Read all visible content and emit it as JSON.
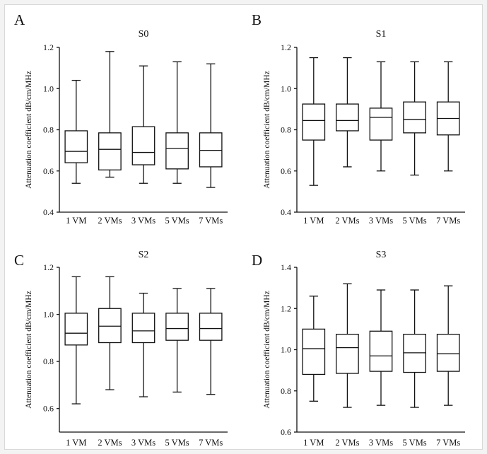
{
  "chart_data": [
    {
      "panel": "A",
      "title": "S0",
      "type": "boxplot",
      "ylabel": "Attenuation coefficient dB/cm/MHz",
      "ylim": [
        0.4,
        1.2
      ],
      "yticks": [
        "0.4",
        "0.6",
        "0.8",
        "1.0",
        "1.2"
      ],
      "categories": [
        "1 VM",
        "2 VMs",
        "3 VMs",
        "5 VMs",
        "7 VMs"
      ],
      "boxes": [
        {
          "min": 0.54,
          "q1": 0.64,
          "median": 0.695,
          "q3": 0.795,
          "max": 1.04
        },
        {
          "min": 0.57,
          "q1": 0.605,
          "median": 0.705,
          "q3": 0.785,
          "max": 1.18
        },
        {
          "min": 0.54,
          "q1": 0.63,
          "median": 0.69,
          "q3": 0.815,
          "max": 1.11
        },
        {
          "min": 0.54,
          "q1": 0.61,
          "median": 0.71,
          "q3": 0.785,
          "max": 1.13
        },
        {
          "min": 0.52,
          "q1": 0.62,
          "median": 0.7,
          "q3": 0.785,
          "max": 1.12
        }
      ]
    },
    {
      "panel": "B",
      "title": "S1",
      "type": "boxplot",
      "ylabel": "Attenuation coefficient dB/cm/MHz",
      "ylim": [
        0.4,
        1.2
      ],
      "yticks": [
        "0.4",
        "0.6",
        "0.8",
        "1.0",
        "1.2"
      ],
      "categories": [
        "1 VM",
        "2 VMs",
        "3 VMs",
        "5 VMs",
        "7 VMs"
      ],
      "boxes": [
        {
          "min": 0.53,
          "q1": 0.75,
          "median": 0.845,
          "q3": 0.925,
          "max": 1.15
        },
        {
          "min": 0.62,
          "q1": 0.795,
          "median": 0.845,
          "q3": 0.925,
          "max": 1.15
        },
        {
          "min": 0.6,
          "q1": 0.75,
          "median": 0.86,
          "q3": 0.905,
          "max": 1.13
        },
        {
          "min": 0.58,
          "q1": 0.785,
          "median": 0.85,
          "q3": 0.935,
          "max": 1.13
        },
        {
          "min": 0.6,
          "q1": 0.775,
          "median": 0.855,
          "q3": 0.935,
          "max": 1.13
        }
      ]
    },
    {
      "panel": "C",
      "title": "S2",
      "type": "boxplot",
      "ylabel": "Attenuation coefficient dB/cm/MHz",
      "ylim": [
        0.5,
        1.2
      ],
      "yticks": [
        "0.6",
        "0.8",
        "1.0",
        "1.2"
      ],
      "categories": [
        "1 VM",
        "2 VMs",
        "3 VMs",
        "5 VMs",
        "7 VMs"
      ],
      "boxes": [
        {
          "min": 0.62,
          "q1": 0.87,
          "median": 0.92,
          "q3": 1.005,
          "max": 1.16
        },
        {
          "min": 0.68,
          "q1": 0.88,
          "median": 0.95,
          "q3": 1.025,
          "max": 1.16
        },
        {
          "min": 0.65,
          "q1": 0.88,
          "median": 0.93,
          "q3": 1.005,
          "max": 1.09
        },
        {
          "min": 0.67,
          "q1": 0.89,
          "median": 0.94,
          "q3": 1.005,
          "max": 1.11
        },
        {
          "min": 0.66,
          "q1": 0.89,
          "median": 0.94,
          "q3": 1.005,
          "max": 1.11
        }
      ]
    },
    {
      "panel": "D",
      "title": "S3",
      "type": "boxplot",
      "ylabel": "Attenuation coefficient dB/cm/MHz",
      "ylim": [
        0.6,
        1.4
      ],
      "yticks": [
        "0.6",
        "0.8",
        "1.0",
        "1.2",
        "1.4"
      ],
      "categories": [
        "1 VM",
        "2 VMs",
        "3 VMs",
        "5 VMs",
        "7 VMs"
      ],
      "boxes": [
        {
          "min": 0.75,
          "q1": 0.88,
          "median": 1.005,
          "q3": 1.1,
          "max": 1.26
        },
        {
          "min": 0.72,
          "q1": 0.885,
          "median": 1.01,
          "q3": 1.075,
          "max": 1.32
        },
        {
          "min": 0.73,
          "q1": 0.895,
          "median": 0.97,
          "q3": 1.09,
          "max": 1.29
        },
        {
          "min": 0.72,
          "q1": 0.89,
          "median": 0.985,
          "q3": 1.075,
          "max": 1.29
        },
        {
          "min": 0.73,
          "q1": 0.895,
          "median": 0.98,
          "q3": 1.075,
          "max": 1.31
        }
      ]
    }
  ]
}
